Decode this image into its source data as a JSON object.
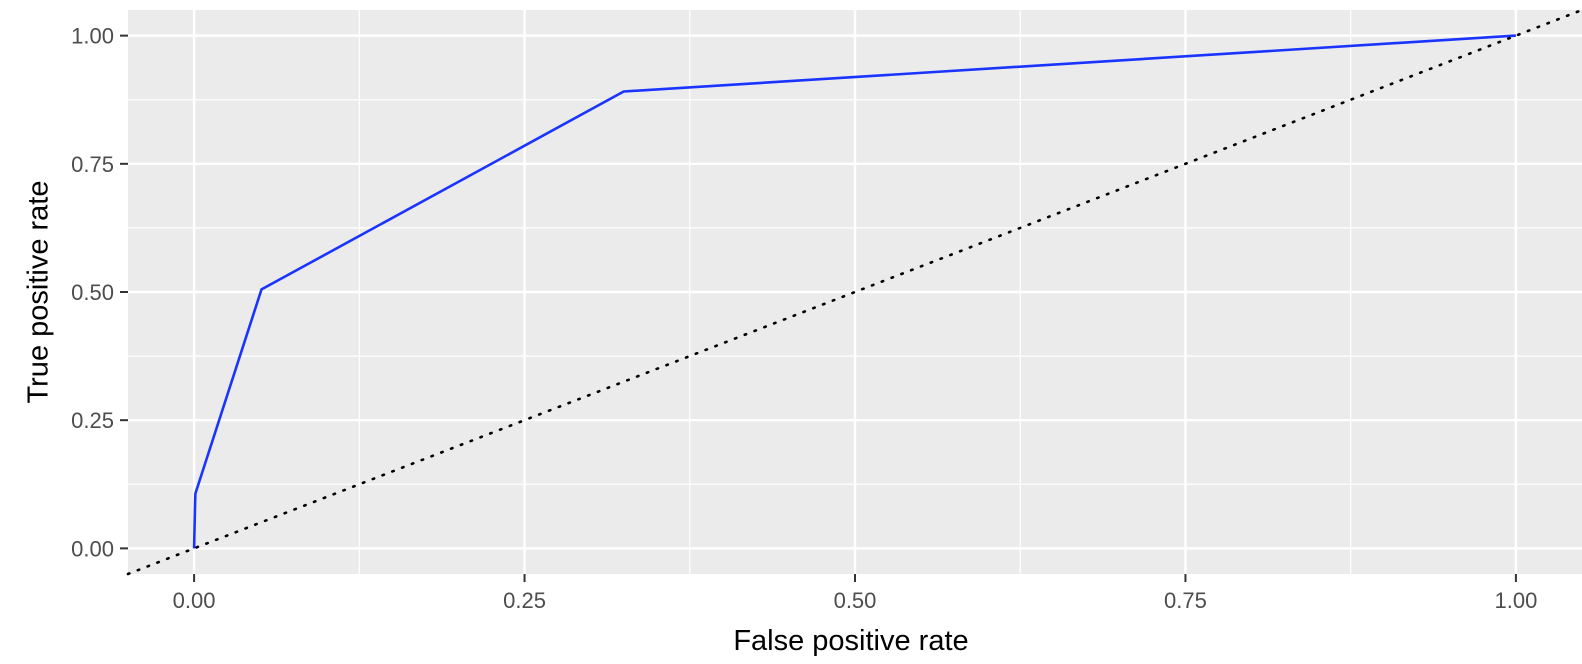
{
  "chart_data": {
    "type": "line",
    "title": "",
    "xlabel": "False positive rate",
    "ylabel": "True positive rate",
    "xlim": [
      -0.05,
      1.05
    ],
    "ylim": [
      -0.05,
      1.05
    ],
    "x_ticks": [
      0,
      0.25,
      0.5,
      0.75,
      1
    ],
    "x_tick_labels": [
      "0.00",
      "0.25",
      "0.50",
      "0.75",
      "1.00"
    ],
    "y_ticks": [
      0,
      0.25,
      0.5,
      0.75,
      1
    ],
    "y_tick_labels": [
      "0.00",
      "0.25",
      "0.50",
      "0.75",
      "1.00"
    ],
    "grid": true,
    "legend": "none",
    "series": [
      {
        "color": "#1a34ff",
        "style": "solid",
        "x": [
          0,
          0.0008,
          0.001,
          0.051,
          0.325,
          1
        ],
        "y": [
          0,
          0.09,
          0.107,
          0.505,
          0.891,
          1
        ]
      },
      {
        "color": "#000000",
        "style": "dotted",
        "x": [
          -0.05,
          1.05
        ],
        "y": [
          -0.05,
          1.05
        ]
      }
    ]
  },
  "colors": {
    "panel_background": "#ebebeb",
    "grid_line": "#ffffff",
    "tick_mark": "#333333",
    "tick_text": "#4d4d4d"
  }
}
